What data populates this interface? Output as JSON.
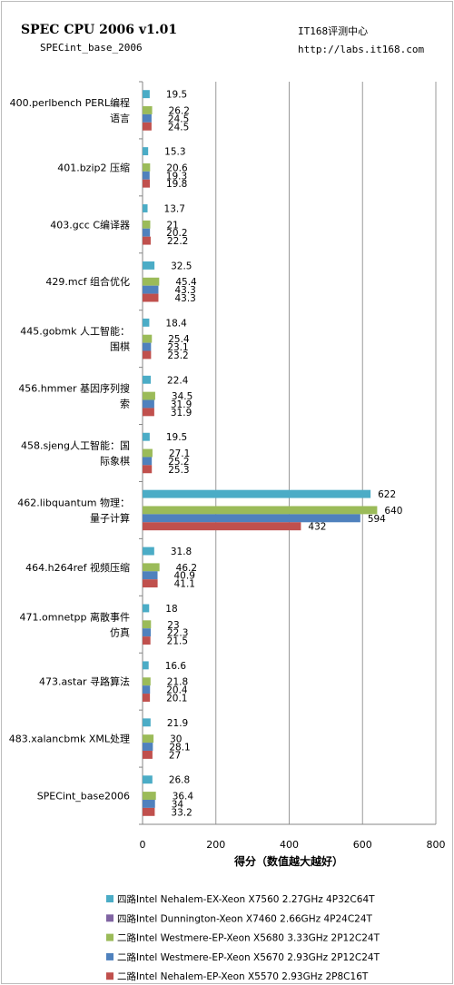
{
  "header": {
    "title": "SPEC CPU 2006 v1.01",
    "subtitle": "SPECint_base_2006",
    "site_name": "IT168评测中心",
    "site_url": "http://labs.it168.com"
  },
  "chart_data": {
    "type": "bar",
    "orientation": "horizontal",
    "title": "SPEC CPU 2006 v1.01",
    "subtitle": "SPECint_base_2006",
    "xlabel": "得分（数值越大越好）",
    "ylabel": "",
    "xlim": [
      0,
      800
    ],
    "xticks": [
      0,
      200,
      400,
      600,
      800
    ],
    "grid": true,
    "legend_position": "bottom",
    "categories": [
      [
        "400.perlbench PERL编程",
        "语言"
      ],
      [
        "401.bzip2 压缩"
      ],
      [
        "403.gcc C编译器"
      ],
      [
        "429.mcf 组合优化"
      ],
      [
        "445.gobmk 人工智能：",
        "围棋"
      ],
      [
        "456.hmmer 基因序列搜",
        "索"
      ],
      [
        "458.sjeng人工智能：国",
        "际象棋"
      ],
      [
        "462.libquantum 物理：",
        "量子计算"
      ],
      [
        "464.h264ref 视频压缩"
      ],
      [
        "471.omnetpp 离散事件",
        "仿真"
      ],
      [
        "473.astar 寻路算法"
      ],
      [
        "483.xalancbmk XML处理"
      ],
      [
        "SPECint_base2006"
      ]
    ],
    "series": [
      {
        "name": "四路Intel Nehalem-EX-Xeon  X7560 2.27GHz 4P32C64T",
        "color": "#4bacc6",
        "values": [
          19.5,
          15.3,
          13.7,
          32.5,
          18.4,
          22.4,
          19.5,
          622,
          31.8,
          18,
          16.6,
          21.9,
          26.8
        ]
      },
      {
        "name": "四路Intel Dunnington-Xeon  X7460 2.66GHz 4P24C24T",
        "color": "#8064a2",
        "values": [
          null,
          null,
          null,
          null,
          null,
          null,
          null,
          null,
          null,
          null,
          null,
          null,
          null
        ]
      },
      {
        "name": "二路Intel Westmere-EP-Xeon  X5680 3.33GHz 2P12C24T",
        "color": "#9bbb59",
        "values": [
          26.2,
          20.6,
          21,
          45.4,
          25.4,
          34.5,
          27.1,
          640,
          46.2,
          23,
          21.8,
          30,
          36.4
        ]
      },
      {
        "name": "二路Intel Westmere-EP-Xeon  X5670 2.93GHz 2P12C24T",
        "color": "#4f81bd",
        "values": [
          24.5,
          19.3,
          20.2,
          43.3,
          23.1,
          31.9,
          25.2,
          594,
          40.9,
          22.3,
          20.4,
          28.1,
          34
        ]
      },
      {
        "name": "二路Intel Nehalem-EP-Xeon  X5570 2.93GHz 2P8C16T",
        "color": "#c0504d",
        "values": [
          24.5,
          19.8,
          22.2,
          43.3,
          23.2,
          31.9,
          25.3,
          432,
          41.1,
          21.5,
          20.1,
          27,
          33.2
        ]
      }
    ]
  }
}
